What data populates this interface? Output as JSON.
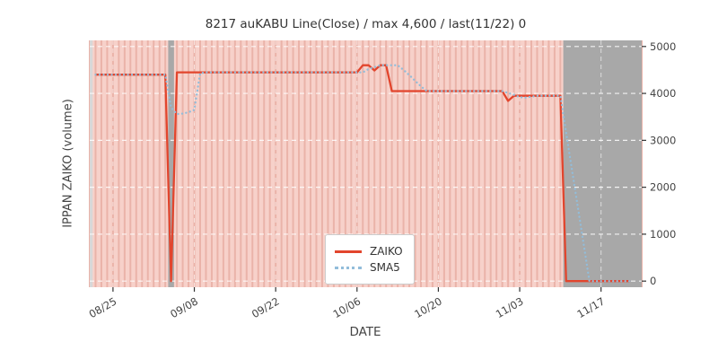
{
  "chart_data": {
    "type": "line",
    "title": "8217 auKABU Line(Close) / max 4,600 / last(11/22) 0",
    "xlabel": "DATE",
    "ylabel": "IPPAN ZAIKO (volume)",
    "x_range": [
      "08/21",
      "11/24"
    ],
    "ylim": [
      -130,
      5130
    ],
    "x_ticks": [
      "08/25",
      "09/08",
      "09/22",
      "10/06",
      "10/20",
      "11/03",
      "11/17"
    ],
    "y_ticks": [
      0,
      1000,
      2000,
      3000,
      4000,
      5000
    ],
    "grid": "white dashed, horizontal and vertical",
    "legend_position": "lower center",
    "colors": {
      "figure_bg": "#ffffff",
      "plot_bg": "#f7d1ca",
      "stripe": "#eab3a9",
      "grid": "#ffffff",
      "band_gray": "#a8a8a8",
      "band_light": "#d8d8d8",
      "zaiko_red": "#e2452d",
      "sma5_blue": "#92bdda",
      "tick_text": "#444444",
      "title_text": "#333333"
    },
    "bands": [
      {
        "from": "08/21",
        "to": "08/21",
        "color": "#d8d8d8"
      },
      {
        "from": "09/04",
        "to": "09/04",
        "color": "#a8a8a8"
      },
      {
        "from": "11/11",
        "to": "11/24",
        "color": "#a8a8a8"
      }
    ],
    "legend": [
      {
        "name": "ZAIKO",
        "color": "#e2452d",
        "style": "solid"
      },
      {
        "name": "SMA5",
        "color": "#92bdda",
        "style": "dotted"
      }
    ],
    "series": [
      {
        "name": "ZAIKO",
        "color": "#e2452d",
        "style": "solid",
        "points": [
          [
            "08/22",
            4400
          ],
          [
            "09/03",
            4400
          ],
          [
            "09/04",
            0
          ],
          [
            "09/05",
            4450
          ],
          [
            "10/06",
            4450
          ],
          [
            "10/07",
            4600
          ],
          [
            "10/08",
            4600
          ],
          [
            "10/09",
            4490
          ],
          [
            "10/10",
            4600
          ],
          [
            "10/11",
            4600
          ],
          [
            "10/12",
            4050
          ],
          [
            "10/31",
            4050
          ],
          [
            "11/01",
            3840
          ],
          [
            "11/02",
            3950
          ],
          [
            "11/10",
            3950
          ],
          [
            "11/11",
            0
          ],
          [
            "11/22",
            0
          ]
        ]
      },
      {
        "name": "SMA5",
        "color": "#92bdda",
        "style": "dotted",
        "points": [
          [
            "08/22",
            4400
          ],
          [
            "09/03",
            4400
          ],
          [
            "09/04",
            3700
          ],
          [
            "09/05",
            3560
          ],
          [
            "09/06",
            3570
          ],
          [
            "09/07",
            3600
          ],
          [
            "09/08",
            3650
          ],
          [
            "09/09",
            4430
          ],
          [
            "09/10",
            4450
          ],
          [
            "10/07",
            4450
          ],
          [
            "10/08",
            4520
          ],
          [
            "10/09",
            4560
          ],
          [
            "10/10",
            4600
          ],
          [
            "10/13",
            4600
          ],
          [
            "10/14",
            4500
          ],
          [
            "10/15",
            4390
          ],
          [
            "10/16",
            4270
          ],
          [
            "10/17",
            4150
          ],
          [
            "10/18",
            4050
          ],
          [
            "10/31",
            4050
          ],
          [
            "11/01",
            4010
          ],
          [
            "11/02",
            3970
          ],
          [
            "11/03",
            3920
          ],
          [
            "11/04",
            3910
          ],
          [
            "11/05",
            3930
          ],
          [
            "11/06",
            3950
          ],
          [
            "11/10",
            3950
          ],
          [
            "11/11",
            3160
          ],
          [
            "11/12",
            2370
          ],
          [
            "11/13",
            1580
          ],
          [
            "11/14",
            790
          ],
          [
            "11/15",
            0
          ],
          [
            "11/22",
            0
          ]
        ]
      }
    ]
  }
}
